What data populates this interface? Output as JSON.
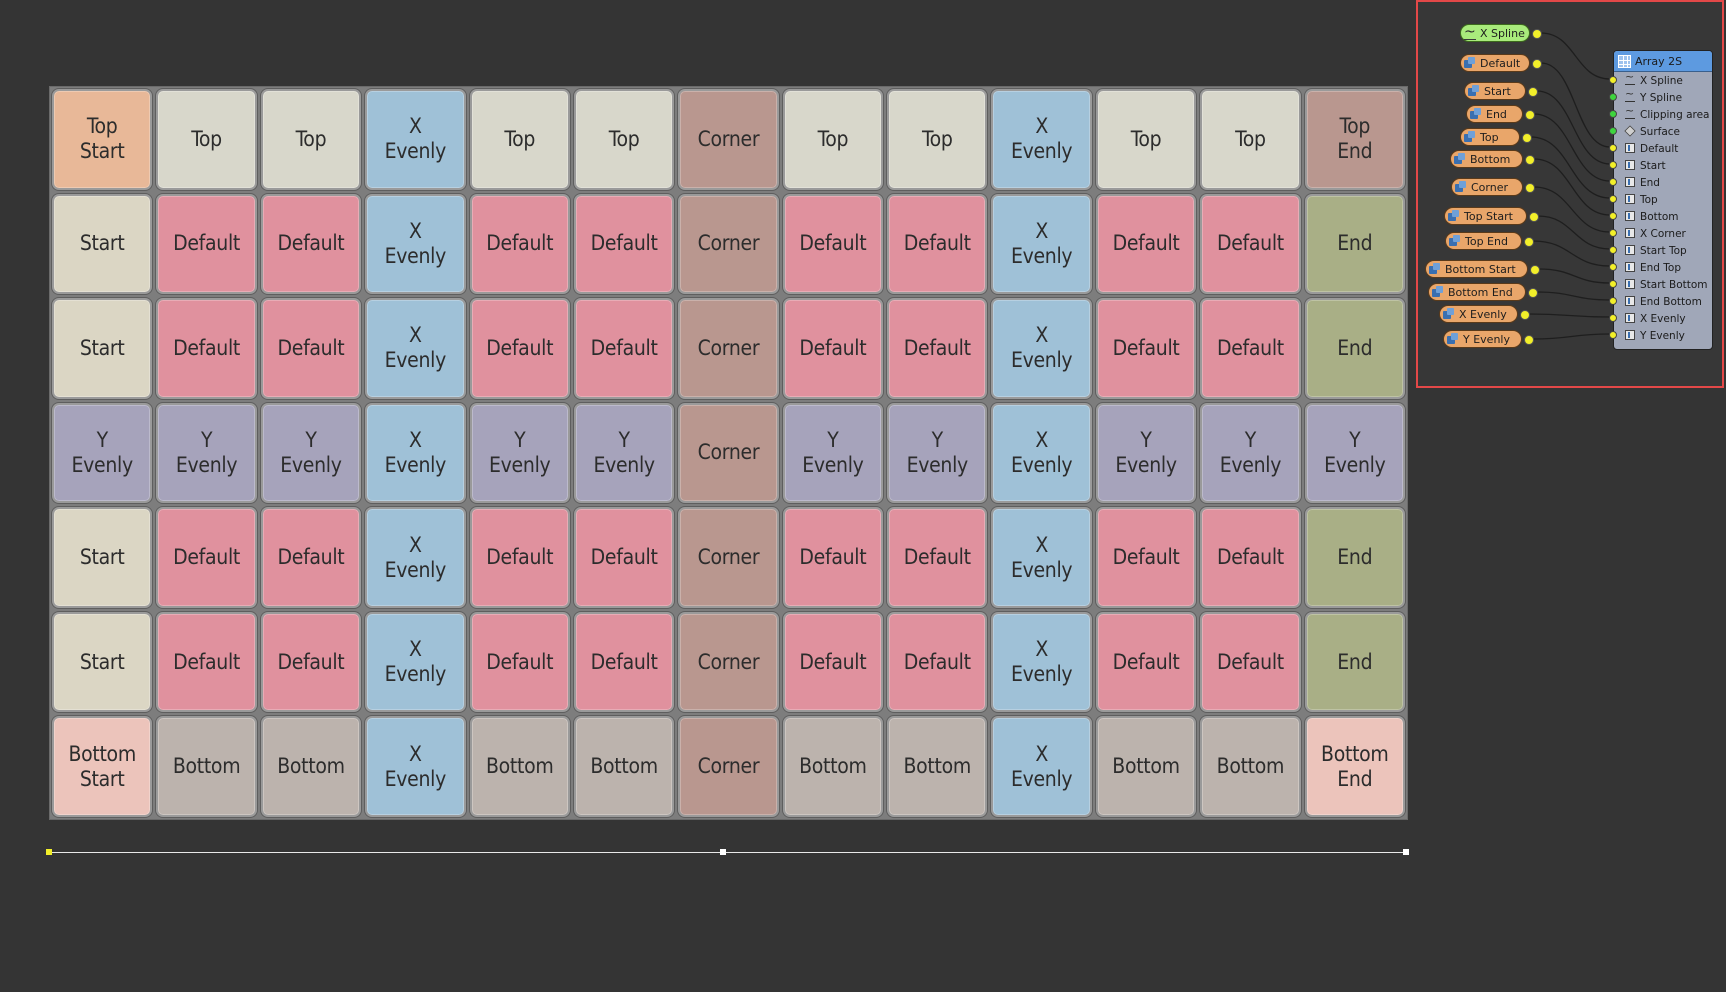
{
  "colors": {
    "background": "#343434",
    "top_start": "#e8b898",
    "top": "#d8d7cb",
    "x_evenly": "#9fc1d7",
    "corner": "#b9978f",
    "top_end": "#b9978f",
    "start": "#dbd6c4",
    "default": "#e0919e",
    "end": "#a9af86",
    "y_evenly": "#a6a3bb",
    "bottom_start": "#ecc4bb",
    "bottom": "#bcb3ad",
    "bottom_end": "#ecc4bb",
    "node_orange": "#e9a66a",
    "node_green": "#a9eb7c",
    "array_header": "#5d9ae0",
    "array_body": "#a0a7b8",
    "selection": "#e34848"
  },
  "grid": {
    "rows": [
      [
        {
          "label": "Top\nStart",
          "type": "top_start"
        },
        {
          "label": "Top",
          "type": "top"
        },
        {
          "label": "Top",
          "type": "top"
        },
        {
          "label": "X\nEvenly",
          "type": "x_evenly"
        },
        {
          "label": "Top",
          "type": "top"
        },
        {
          "label": "Top",
          "type": "top"
        },
        {
          "label": "Corner",
          "type": "corner"
        },
        {
          "label": "Top",
          "type": "top"
        },
        {
          "label": "Top",
          "type": "top"
        },
        {
          "label": "X\nEvenly",
          "type": "x_evenly"
        },
        {
          "label": "Top",
          "type": "top"
        },
        {
          "label": "Top",
          "type": "top"
        },
        {
          "label": "Top\nEnd",
          "type": "top_end"
        }
      ],
      [
        {
          "label": "Start",
          "type": "start"
        },
        {
          "label": "Default",
          "type": "default"
        },
        {
          "label": "Default",
          "type": "default"
        },
        {
          "label": "X\nEvenly",
          "type": "x_evenly"
        },
        {
          "label": "Default",
          "type": "default"
        },
        {
          "label": "Default",
          "type": "default"
        },
        {
          "label": "Corner",
          "type": "corner"
        },
        {
          "label": "Default",
          "type": "default"
        },
        {
          "label": "Default",
          "type": "default"
        },
        {
          "label": "X\nEvenly",
          "type": "x_evenly"
        },
        {
          "label": "Default",
          "type": "default"
        },
        {
          "label": "Default",
          "type": "default"
        },
        {
          "label": "End",
          "type": "end"
        }
      ],
      [
        {
          "label": "Start",
          "type": "start"
        },
        {
          "label": "Default",
          "type": "default"
        },
        {
          "label": "Default",
          "type": "default"
        },
        {
          "label": "X\nEvenly",
          "type": "x_evenly"
        },
        {
          "label": "Default",
          "type": "default"
        },
        {
          "label": "Default",
          "type": "default"
        },
        {
          "label": "Corner",
          "type": "corner"
        },
        {
          "label": "Default",
          "type": "default"
        },
        {
          "label": "Default",
          "type": "default"
        },
        {
          "label": "X\nEvenly",
          "type": "x_evenly"
        },
        {
          "label": "Default",
          "type": "default"
        },
        {
          "label": "Default",
          "type": "default"
        },
        {
          "label": "End",
          "type": "end"
        }
      ],
      [
        {
          "label": "Y\nEvenly",
          "type": "y_evenly"
        },
        {
          "label": "Y\nEvenly",
          "type": "y_evenly"
        },
        {
          "label": "Y\nEvenly",
          "type": "y_evenly"
        },
        {
          "label": "X\nEvenly",
          "type": "x_evenly"
        },
        {
          "label": "Y\nEvenly",
          "type": "y_evenly"
        },
        {
          "label": "Y\nEvenly",
          "type": "y_evenly"
        },
        {
          "label": "Corner",
          "type": "corner"
        },
        {
          "label": "Y\nEvenly",
          "type": "y_evenly"
        },
        {
          "label": "Y\nEvenly",
          "type": "y_evenly"
        },
        {
          "label": "X\nEvenly",
          "type": "x_evenly"
        },
        {
          "label": "Y\nEvenly",
          "type": "y_evenly"
        },
        {
          "label": "Y\nEvenly",
          "type": "y_evenly"
        },
        {
          "label": "Y\nEvenly",
          "type": "y_evenly"
        }
      ],
      [
        {
          "label": "Start",
          "type": "start"
        },
        {
          "label": "Default",
          "type": "default"
        },
        {
          "label": "Default",
          "type": "default"
        },
        {
          "label": "X\nEvenly",
          "type": "x_evenly"
        },
        {
          "label": "Default",
          "type": "default"
        },
        {
          "label": "Default",
          "type": "default"
        },
        {
          "label": "Corner",
          "type": "corner"
        },
        {
          "label": "Default",
          "type": "default"
        },
        {
          "label": "Default",
          "type": "default"
        },
        {
          "label": "X\nEvenly",
          "type": "x_evenly"
        },
        {
          "label": "Default",
          "type": "default"
        },
        {
          "label": "Default",
          "type": "default"
        },
        {
          "label": "End",
          "type": "end"
        }
      ],
      [
        {
          "label": "Start",
          "type": "start"
        },
        {
          "label": "Default",
          "type": "default"
        },
        {
          "label": "Default",
          "type": "default"
        },
        {
          "label": "X\nEvenly",
          "type": "x_evenly"
        },
        {
          "label": "Default",
          "type": "default"
        },
        {
          "label": "Default",
          "type": "default"
        },
        {
          "label": "Corner",
          "type": "corner"
        },
        {
          "label": "Default",
          "type": "default"
        },
        {
          "label": "Default",
          "type": "default"
        },
        {
          "label": "X\nEvenly",
          "type": "x_evenly"
        },
        {
          "label": "Default",
          "type": "default"
        },
        {
          "label": "Default",
          "type": "default"
        },
        {
          "label": "End",
          "type": "end"
        }
      ],
      [
        {
          "label": "Bottom\nStart",
          "type": "bottom_start"
        },
        {
          "label": "Bottom",
          "type": "bottom"
        },
        {
          "label": "Bottom",
          "type": "bottom"
        },
        {
          "label": "X\nEvenly",
          "type": "x_evenly"
        },
        {
          "label": "Bottom",
          "type": "bottom"
        },
        {
          "label": "Bottom",
          "type": "bottom"
        },
        {
          "label": "Corner",
          "type": "corner"
        },
        {
          "label": "Bottom",
          "type": "bottom"
        },
        {
          "label": "Bottom",
          "type": "bottom"
        },
        {
          "label": "X\nEvenly",
          "type": "x_evenly"
        },
        {
          "label": "Bottom",
          "type": "bottom"
        },
        {
          "label": "Bottom",
          "type": "bottom"
        },
        {
          "label": "Bottom\nEnd",
          "type": "bottom_end"
        }
      ]
    ]
  },
  "node_editor": {
    "input_nodes": [
      {
        "label": "X Spline",
        "icon": "spline-icon",
        "kind": "spline"
      },
      {
        "label": "Default",
        "icon": "layer-icon",
        "kind": "layer"
      },
      {
        "label": "Start",
        "icon": "layer-icon",
        "kind": "layer"
      },
      {
        "label": "End",
        "icon": "layer-icon",
        "kind": "layer"
      },
      {
        "label": "Top",
        "icon": "layer-icon",
        "kind": "layer"
      },
      {
        "label": "Bottom",
        "icon": "layer-icon",
        "kind": "layer"
      },
      {
        "label": "Corner",
        "icon": "layer-icon",
        "kind": "layer"
      },
      {
        "label": "Top Start",
        "icon": "layer-icon",
        "kind": "layer"
      },
      {
        "label": "Top End",
        "icon": "layer-icon",
        "kind": "layer"
      },
      {
        "label": "Bottom Start",
        "icon": "layer-icon",
        "kind": "layer"
      },
      {
        "label": "Bottom End",
        "icon": "layer-icon",
        "kind": "layer"
      },
      {
        "label": "X Evenly",
        "icon": "layer-icon",
        "kind": "layer"
      },
      {
        "label": "Y Evenly",
        "icon": "layer-icon",
        "kind": "layer"
      }
    ],
    "array_node": {
      "title": "Array 2S",
      "ports": [
        {
          "label": "X Spline",
          "icon": "spline",
          "dot": "#f2ef2a"
        },
        {
          "label": "Y Spline",
          "icon": "spline",
          "dot": "#3ed43e"
        },
        {
          "label": "Clipping area",
          "icon": "spline",
          "dot": "#3ed43e"
        },
        {
          "label": "Surface",
          "icon": "surface",
          "dot": "#3ed43e"
        },
        {
          "label": "Default",
          "icon": "box",
          "dot": "#f2ef2a"
        },
        {
          "label": "Start",
          "icon": "box",
          "dot": "#f2ef2a"
        },
        {
          "label": "End",
          "icon": "box",
          "dot": "#f2ef2a"
        },
        {
          "label": "Top",
          "icon": "box",
          "dot": "#f2ef2a"
        },
        {
          "label": "Bottom",
          "icon": "box",
          "dot": "#f2ef2a"
        },
        {
          "label": "X Corner",
          "icon": "box",
          "dot": "#f2ef2a"
        },
        {
          "label": "Start Top",
          "icon": "box",
          "dot": "#f2ef2a"
        },
        {
          "label": "End Top",
          "icon": "box",
          "dot": "#f2ef2a"
        },
        {
          "label": "Start Bottom",
          "icon": "box",
          "dot": "#f2ef2a"
        },
        {
          "label": "End Bottom",
          "icon": "box",
          "dot": "#f2ef2a"
        },
        {
          "label": "X Evenly",
          "icon": "box",
          "dot": "#f2ef2a"
        },
        {
          "label": "Y Evenly",
          "icon": "box",
          "dot": "#f2ef2a"
        }
      ]
    }
  }
}
